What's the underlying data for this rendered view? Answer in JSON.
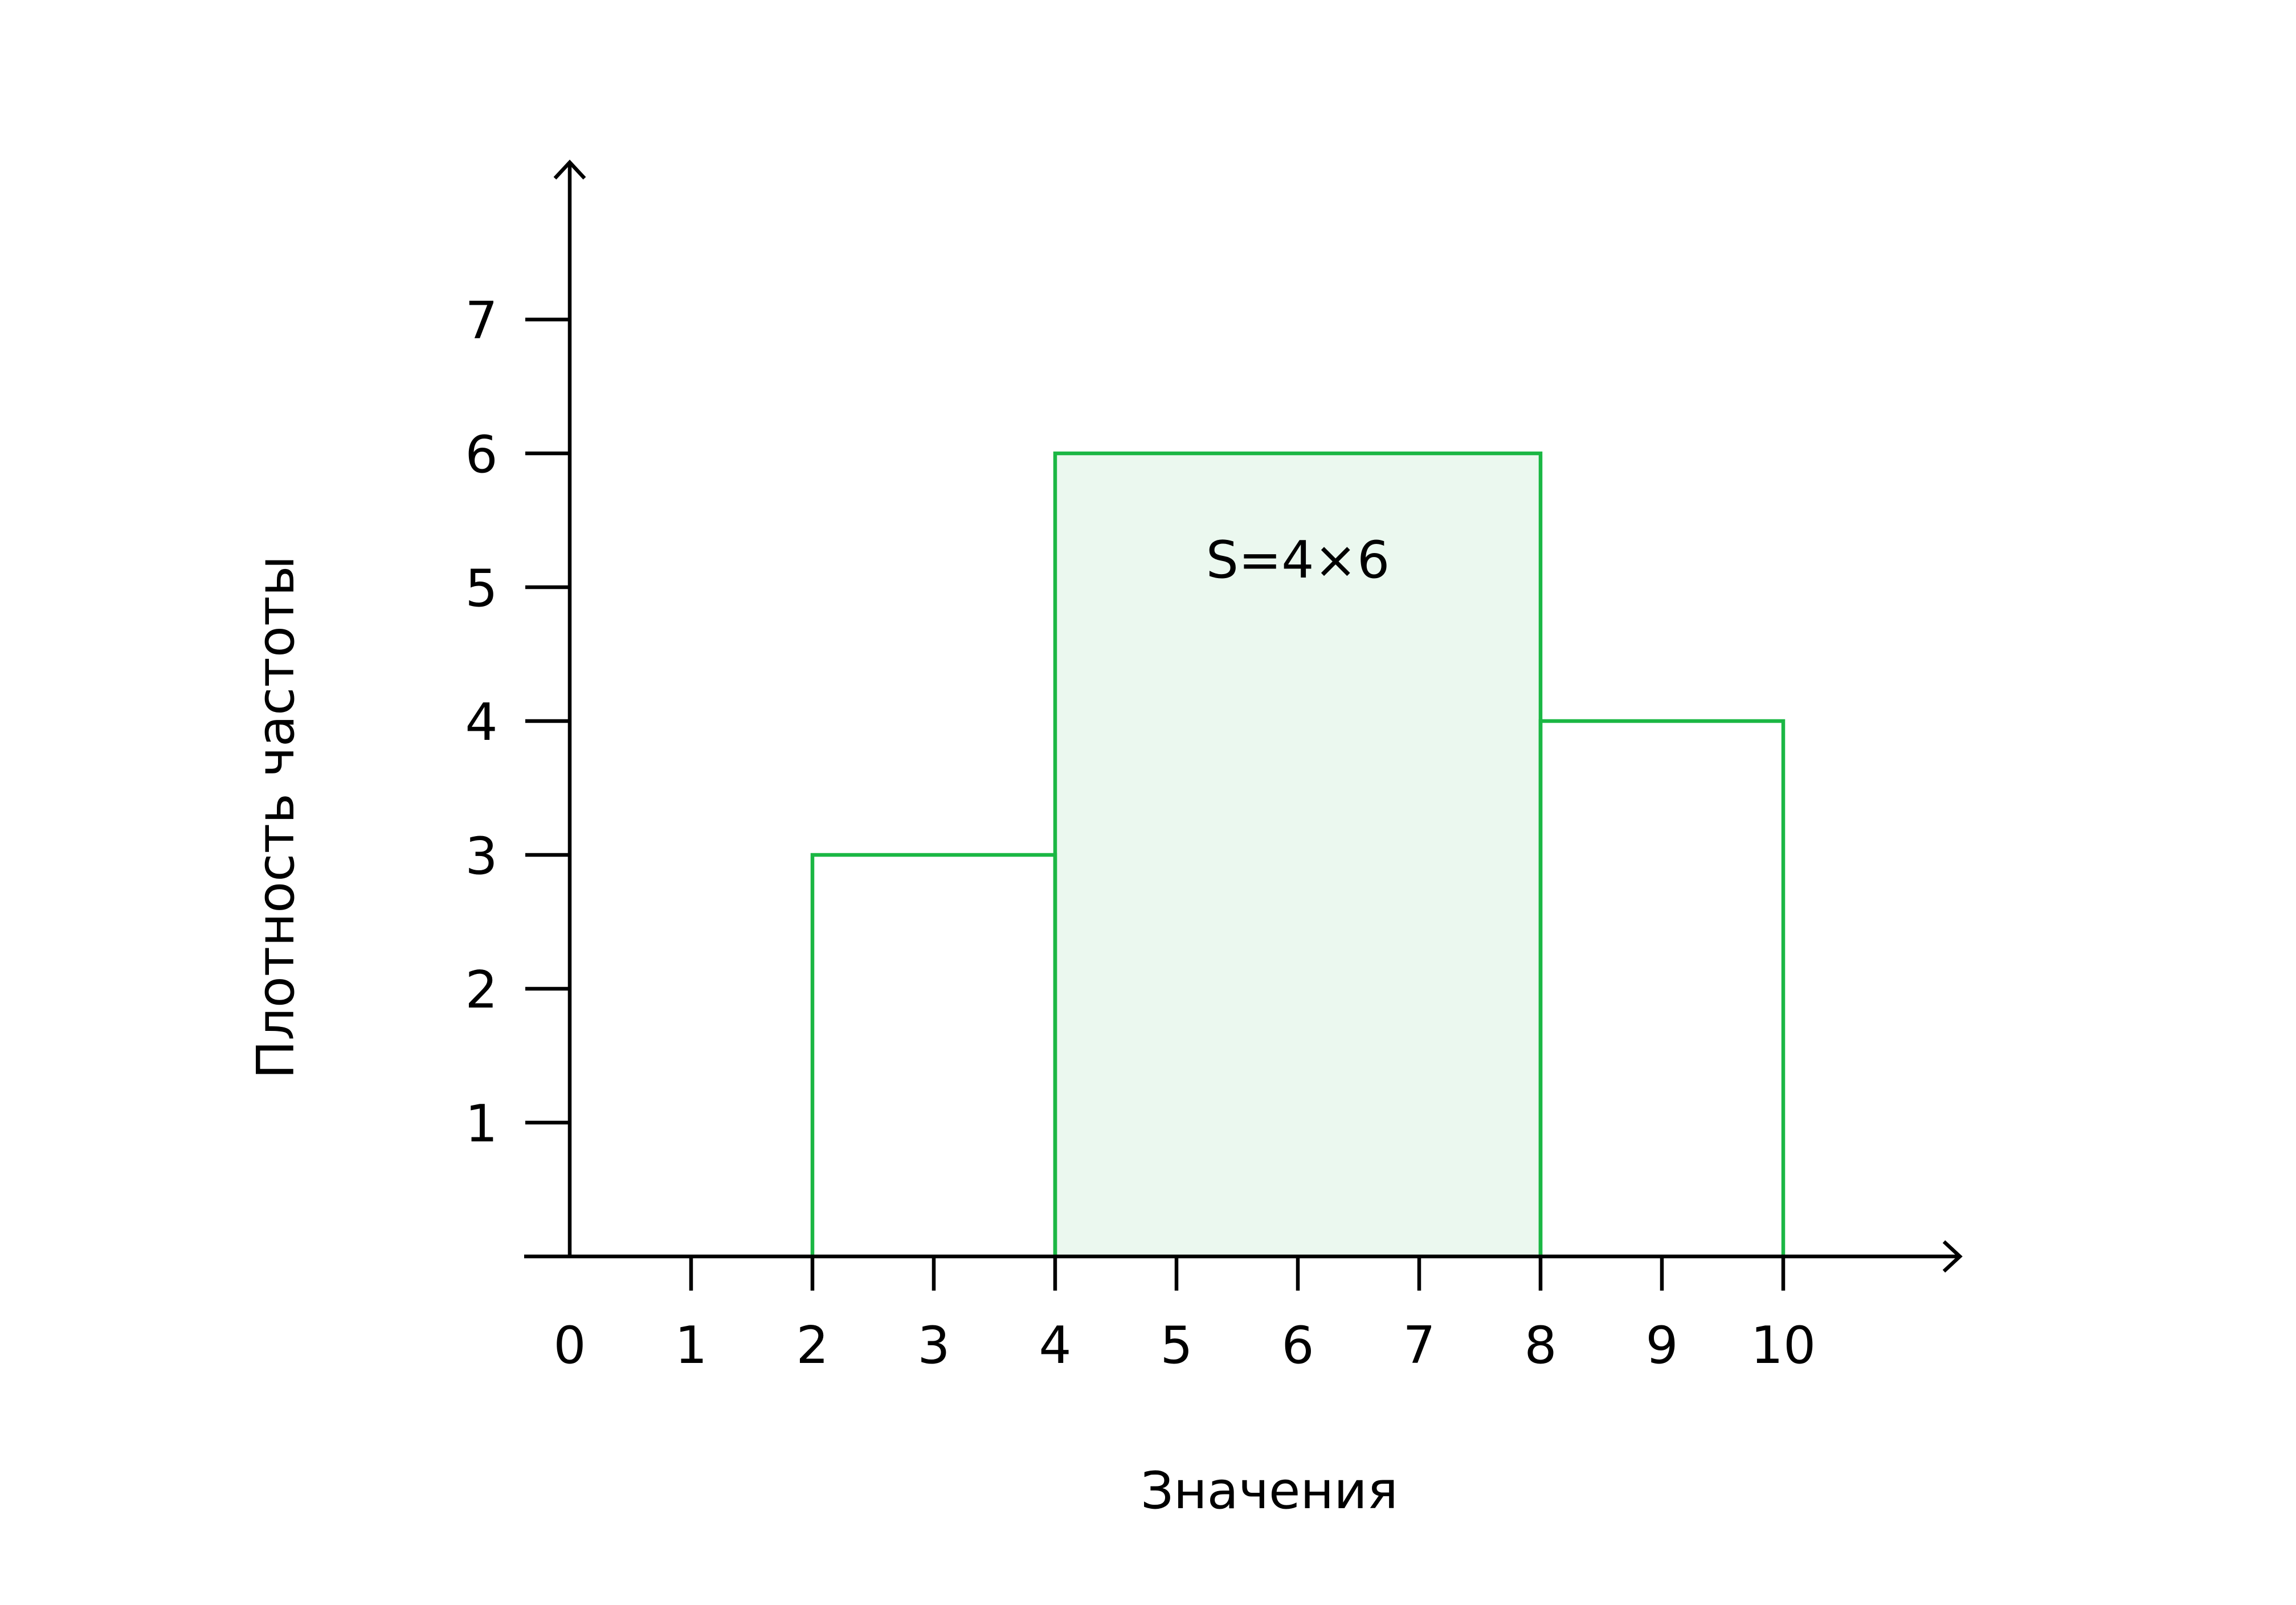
{
  "chart_data": {
    "type": "bar",
    "title": "",
    "xlabel": "Значения",
    "ylabel": "Плотность частоты",
    "xlim": [
      0,
      10
    ],
    "ylim": [
      0,
      7
    ],
    "x_ticks": [
      "0",
      "1",
      "2",
      "3",
      "4",
      "5",
      "6",
      "7",
      "8",
      "9",
      "10"
    ],
    "y_ticks": [
      "1",
      "2",
      "3",
      "4",
      "5",
      "6",
      "7"
    ],
    "bins": [
      {
        "x_start": 2,
        "x_end": 4,
        "value": 3,
        "highlighted": false
      },
      {
        "x_start": 4,
        "x_end": 8,
        "value": 6,
        "highlighted": true
      },
      {
        "x_start": 8,
        "x_end": 10,
        "value": 4,
        "highlighted": false
      }
    ],
    "annotation": {
      "text": "S=4×6",
      "x": 6,
      "y": 5.2
    },
    "grid": false,
    "legend": "none",
    "colors": {
      "bar_stroke": "#1bb744",
      "highlight_fill": "#ebf8ef",
      "axis": "#000000"
    }
  }
}
